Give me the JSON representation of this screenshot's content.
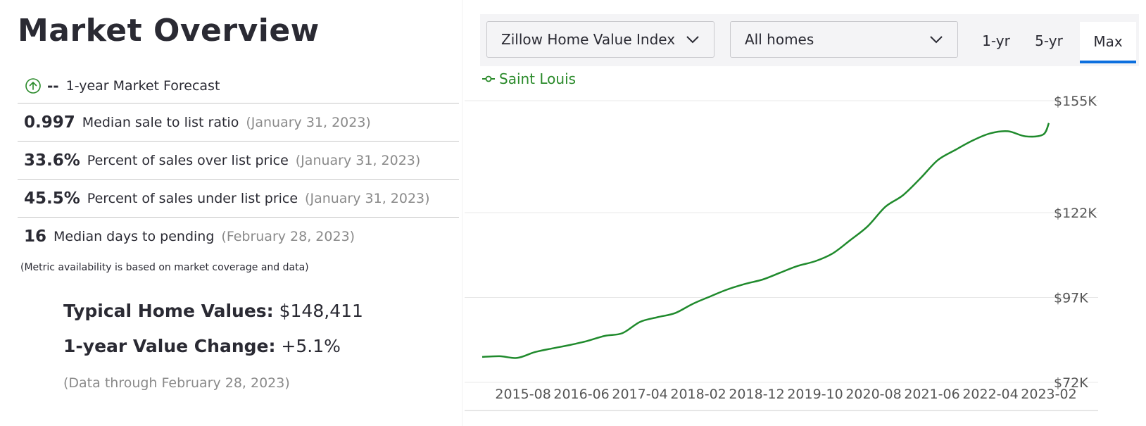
{
  "title": "Market Overview",
  "forecast": {
    "value": "--",
    "label": "1-year Market Forecast",
    "icon": "arrow-up-circle-icon"
  },
  "stats": [
    {
      "value": "0.997",
      "label": "Median sale to list ratio",
      "date": "(January 31, 2023)"
    },
    {
      "value": "33.6%",
      "label": "Percent of sales over list price",
      "date": "(January 31, 2023)"
    },
    {
      "value": "45.5%",
      "label": "Percent of sales under list price",
      "date": "(January 31, 2023)"
    },
    {
      "value": "16",
      "label": "Median days to pending",
      "date": "(February 28, 2023)"
    }
  ],
  "note": "(Metric availability is based on market coverage and data)",
  "home_values": {
    "label": "Typical Home Values:",
    "value": "$148,411"
  },
  "value_change": {
    "label": "1-year Value Change:",
    "value": "+5.1%"
  },
  "data_through": "(Data through February 28, 2023)",
  "controls": {
    "index_select": "Zillow Home Value Index",
    "home_type_select": "All homes",
    "ranges": [
      "1-yr",
      "5-yr",
      "Max"
    ],
    "active_range": "Max"
  },
  "colors": {
    "line": "#1f8a2c",
    "accent": "#0c6fde",
    "grid": "#e8e8e8"
  },
  "chart_data": {
    "type": "line",
    "series": [
      {
        "name": "Saint Louis",
        "x": [
          "2015-01",
          "2015-04",
          "2015-07",
          "2015-10",
          "2016-01",
          "2016-04",
          "2016-07",
          "2016-10",
          "2017-01",
          "2017-04",
          "2017-07",
          "2017-10",
          "2018-01",
          "2018-04",
          "2018-07",
          "2018-10",
          "2019-01",
          "2019-04",
          "2019-07",
          "2019-10",
          "2020-01",
          "2020-04",
          "2020-07",
          "2020-10",
          "2021-01",
          "2021-04",
          "2021-07",
          "2021-10",
          "2022-01",
          "2022-04",
          "2022-07",
          "2022-10",
          "2023-01",
          "2023-02"
        ],
        "values": [
          79.5,
          79.7,
          79.2,
          80.9,
          82.0,
          83.0,
          84.2,
          85.7,
          86.5,
          89.8,
          91.2,
          92.4,
          95.1,
          97.3,
          99.4,
          101.0,
          102.3,
          104.3,
          106.3,
          107.7,
          110.0,
          113.9,
          118.0,
          123.7,
          127.1,
          132.1,
          137.5,
          140.5,
          143.3,
          145.4,
          146.0,
          144.5,
          145.0,
          148.4
        ]
      }
    ],
    "x_ticks": [
      "2015-08",
      "2016-06",
      "2017-04",
      "2018-02",
      "2018-12",
      "2019-10",
      "2020-08",
      "2021-06",
      "2022-04",
      "2023-02"
    ],
    "y_ticks": [
      72,
      97,
      122,
      155
    ],
    "y_tick_labels": [
      "$72K",
      "$97K",
      "$122K",
      "$155K"
    ],
    "ylim": [
      72,
      155
    ],
    "y_unit": "thousands USD",
    "grid": true,
    "legend": "top-left"
  }
}
